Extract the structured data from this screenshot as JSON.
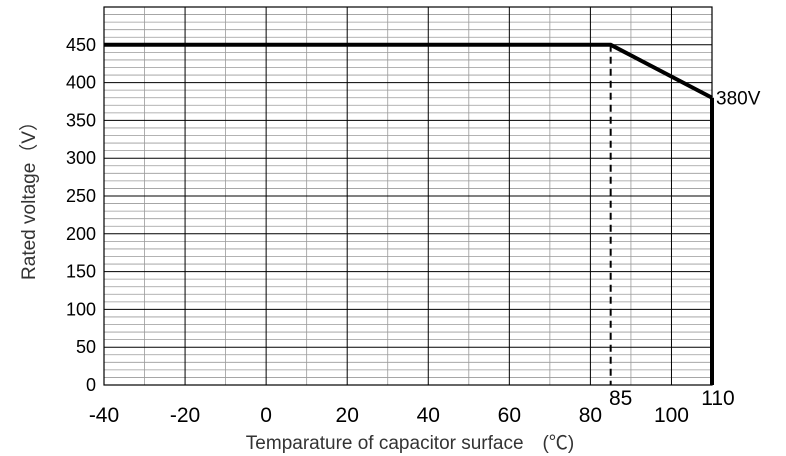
{
  "chart_data": {
    "type": "line",
    "title": "",
    "xlabel": "Temparature of capacitor surface　(℃)",
    "ylabel": "Rated voltage（V）",
    "xlim": [
      -40,
      110
    ],
    "ylim": [
      0,
      500
    ],
    "x_ticks": [
      "-40",
      "-20",
      "0",
      "20",
      "40",
      "60",
      "80",
      "100"
    ],
    "y_ticks": [
      "0",
      "50",
      "100",
      "150",
      "200",
      "250",
      "300",
      "350",
      "400",
      "450"
    ],
    "series": [
      {
        "values": [
          [
            -40,
            450
          ],
          [
            85,
            450
          ],
          [
            110,
            380
          ]
        ]
      }
    ],
    "reference_lines": [
      {
        "x": 85,
        "style": "dashed",
        "from": 0,
        "to": 450
      },
      {
        "x": 110,
        "style": "solid",
        "from": 0,
        "to": 380
      }
    ],
    "annotations": [
      {
        "text": "85",
        "x": 85
      },
      {
        "text": "110",
        "x": 110
      },
      {
        "text": "380V",
        "y": 380
      }
    ],
    "grid": true,
    "colors": {
      "line": "#000000",
      "grid_major": "#000000",
      "grid_minor": "#9a9a9a"
    }
  }
}
